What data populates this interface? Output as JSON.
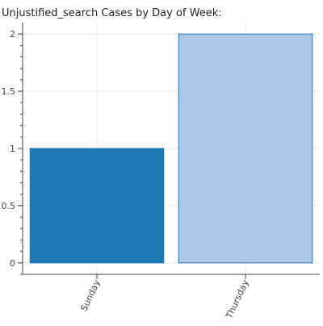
{
  "chart_data": {
    "type": "bar",
    "title": "Unjustified_search Cases by Day of Week:",
    "xlabel": "",
    "ylabel": "",
    "categories": [
      "Sunday",
      "Thursday"
    ],
    "values": [
      1,
      2
    ],
    "bar_colors": [
      "#1f77b4",
      "#aec7e8"
    ],
    "bar_stroke_colors": [
      "#1f77b4",
      "#1f77b4"
    ],
    "ylim": [
      -0.1,
      2.1
    ],
    "yticks": [
      0,
      0.5,
      1,
      1.5,
      2
    ],
    "ytick_labels": [
      "0",
      "0.5",
      "1",
      "1.5",
      "2"
    ],
    "grid": true,
    "legend": "none"
  }
}
